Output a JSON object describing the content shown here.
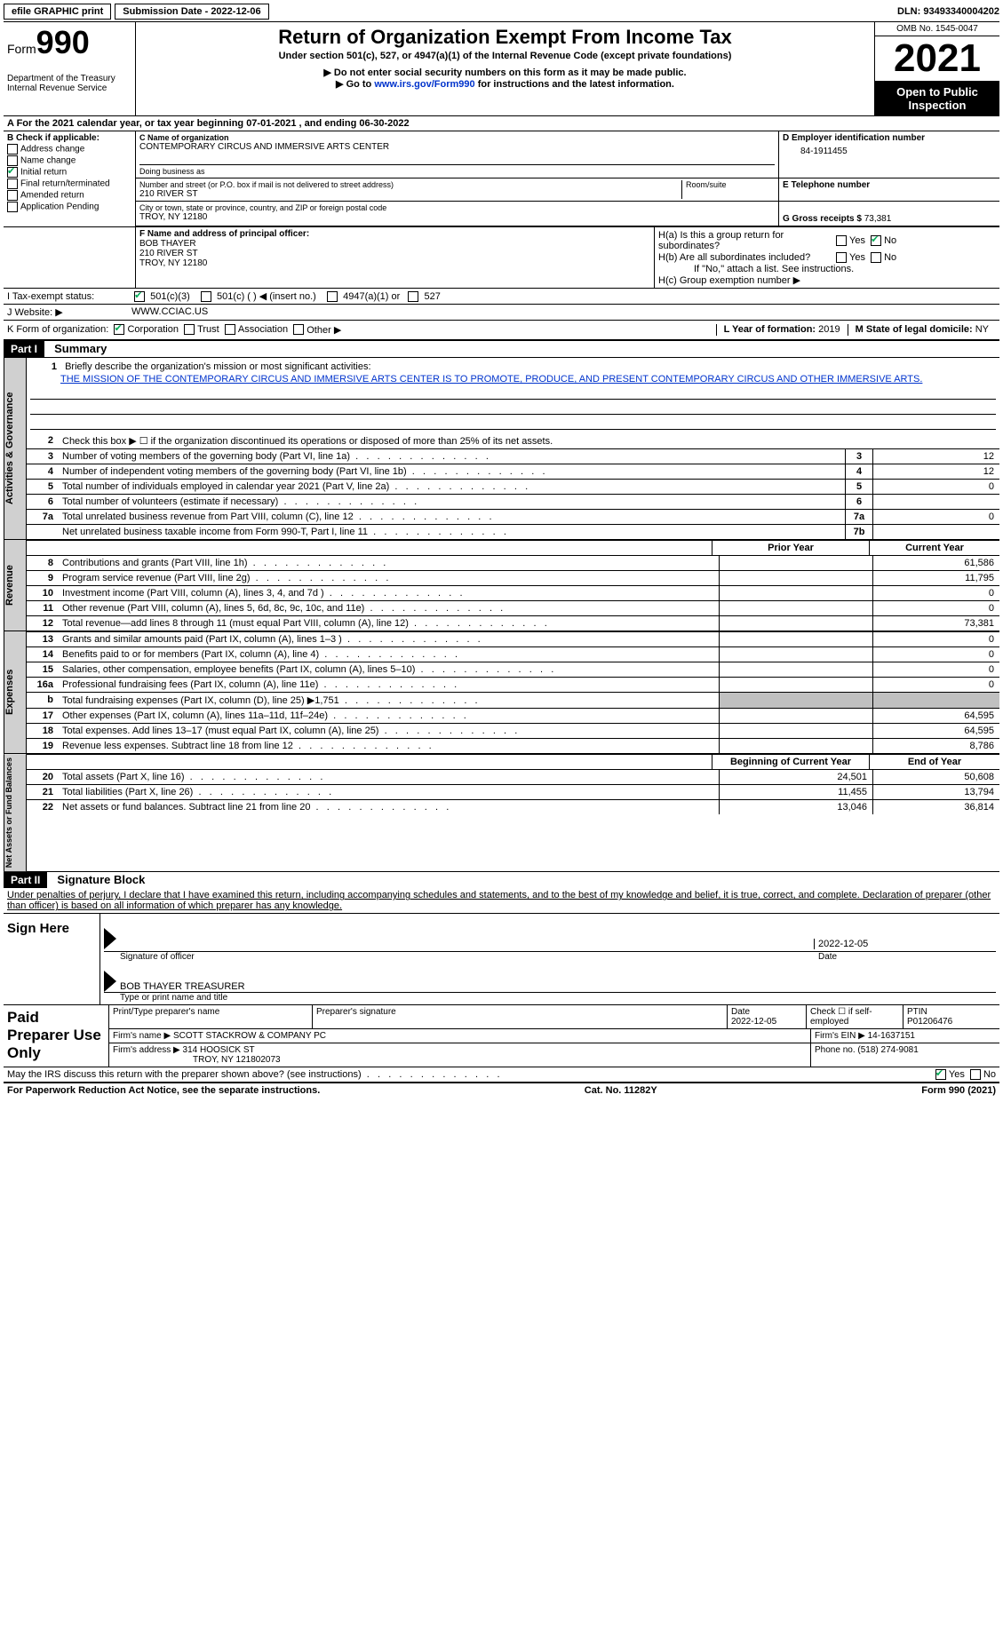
{
  "topbar": {
    "efile": "efile GRAPHIC print",
    "submission_label": "Submission Date - 2022-12-06",
    "dln_label": "DLN: 93493340004202"
  },
  "header": {
    "form_label": "Form",
    "form_number": "990",
    "dept": "Department of the Treasury",
    "irs": "Internal Revenue Service",
    "title": "Return of Organization Exempt From Income Tax",
    "subtitle": "Under section 501(c), 527, or 4947(a)(1) of the Internal Revenue Code (except private foundations)",
    "note1": "▶ Do not enter social security numbers on this form as it may be made public.",
    "note2_a": "▶ Go to ",
    "note2_link": "www.irs.gov/Form990",
    "note2_b": " for instructions and the latest information.",
    "omb": "OMB No. 1545-0047",
    "year": "2021",
    "open": "Open to Public Inspection"
  },
  "row_a": "A For the 2021 calendar year, or tax year beginning 07-01-2021    , and ending 06-30-2022",
  "col_b": {
    "header": "B Check if applicable:",
    "items": [
      {
        "label": "Address change",
        "checked": false
      },
      {
        "label": "Name change",
        "checked": false
      },
      {
        "label": "Initial return",
        "checked": true
      },
      {
        "label": "Final return/terminated",
        "checked": false
      },
      {
        "label": "Amended return",
        "checked": false
      },
      {
        "label": "Application Pending",
        "checked": false
      }
    ]
  },
  "col_c": {
    "name_label": "C Name of organization",
    "name": "CONTEMPORARY CIRCUS AND IMMERSIVE ARTS CENTER",
    "dba_label": "Doing business as",
    "addr_label": "Number and street (or P.O. box if mail is not delivered to street address)",
    "room_label": "Room/suite",
    "street": "210 RIVER ST",
    "city_label": "City or town, state or province, country, and ZIP or foreign postal code",
    "city": "TROY, NY  12180"
  },
  "col_d": {
    "label": "D Employer identification number",
    "value": "84-1911455"
  },
  "col_e": {
    "label": "E Telephone number",
    "value": ""
  },
  "col_g": {
    "label": "G Gross receipts $",
    "value": "73,381"
  },
  "col_f": {
    "label": "F  Name and address of principal officer:",
    "name": "BOB THAYER",
    "street": "210 RIVER ST",
    "city": "TROY, NY  12180"
  },
  "col_h": {
    "ha": "H(a)  Is this a group return for subordinates?",
    "hb": "H(b)  Are all subordinates included?",
    "hb_note": "If \"No,\" attach a list. See instructions.",
    "hc": "H(c)  Group exemption number ▶",
    "ha_no_checked": true
  },
  "tax_status": {
    "label": "I  Tax-exempt status:",
    "opt1": "501(c)(3)",
    "opt2": "501(c) (  ) ◀ (insert no.)",
    "opt3": "4947(a)(1) or",
    "opt4": "527",
    "checked_501c3": true
  },
  "website": {
    "label": "J  Website: ▶",
    "value": "WWW.CCIAC.US"
  },
  "k_org": {
    "label": "K Form of organization:",
    "corp": "Corporation",
    "trust": "Trust",
    "assoc": "Association",
    "other": "Other ▶",
    "l_label": "L Year of formation: ",
    "l_value": "2019",
    "m_label": "M State of legal domicile: ",
    "m_value": "NY"
  },
  "part1": {
    "header": "Part I",
    "title": "Summary",
    "line1_label": "Briefly describe the organization's mission or most significant activities:",
    "mission": "THE MISSION OF THE CONTEMPORARY CIRCUS AND IMMERSIVE ARTS CENTER IS TO PROMOTE, PRODUCE, AND PRESENT CONTEMPORARY CIRCUS AND OTHER IMMERSIVE ARTS.",
    "line2": "Check this box ▶ ☐  if the organization discontinued its operations or disposed of more than 25% of its net assets.",
    "gov_lines": [
      {
        "num": "3",
        "desc": "Number of voting members of the governing body (Part VI, line 1a)",
        "box": "3",
        "val": "12"
      },
      {
        "num": "4",
        "desc": "Number of independent voting members of the governing body (Part VI, line 1b)",
        "box": "4",
        "val": "12"
      },
      {
        "num": "5",
        "desc": "Total number of individuals employed in calendar year 2021 (Part V, line 2a)",
        "box": "5",
        "val": "0"
      },
      {
        "num": "6",
        "desc": "Total number of volunteers (estimate if necessary)",
        "box": "6",
        "val": ""
      },
      {
        "num": "7a",
        "desc": "Total unrelated business revenue from Part VIII, column (C), line 12",
        "box": "7a",
        "val": "0"
      },
      {
        "num": "",
        "desc": "Net unrelated business taxable income from Form 990-T, Part I, line 11",
        "box": "7b",
        "val": ""
      }
    ],
    "col_prior": "Prior Year",
    "col_current": "Current Year",
    "rev_lines": [
      {
        "num": "8",
        "desc": "Contributions and grants (Part VIII, line 1h)",
        "prior": "",
        "current": "61,586"
      },
      {
        "num": "9",
        "desc": "Program service revenue (Part VIII, line 2g)",
        "prior": "",
        "current": "11,795"
      },
      {
        "num": "10",
        "desc": "Investment income (Part VIII, column (A), lines 3, 4, and 7d )",
        "prior": "",
        "current": "0"
      },
      {
        "num": "11",
        "desc": "Other revenue (Part VIII, column (A), lines 5, 6d, 8c, 9c, 10c, and 11e)",
        "prior": "",
        "current": "0"
      },
      {
        "num": "12",
        "desc": "Total revenue—add lines 8 through 11 (must equal Part VIII, column (A), line 12)",
        "prior": "",
        "current": "73,381"
      }
    ],
    "exp_lines": [
      {
        "num": "13",
        "desc": "Grants and similar amounts paid (Part IX, column (A), lines 1–3 )",
        "prior": "",
        "current": "0"
      },
      {
        "num": "14",
        "desc": "Benefits paid to or for members (Part IX, column (A), line 4)",
        "prior": "",
        "current": "0"
      },
      {
        "num": "15",
        "desc": "Salaries, other compensation, employee benefits (Part IX, column (A), lines 5–10)",
        "prior": "",
        "current": "0"
      },
      {
        "num": "16a",
        "desc": "Professional fundraising fees (Part IX, column (A), line 11e)",
        "prior": "",
        "current": "0"
      },
      {
        "num": "b",
        "desc": "Total fundraising expenses (Part IX, column (D), line 25) ▶1,751",
        "prior": "grey",
        "current": "grey"
      },
      {
        "num": "17",
        "desc": "Other expenses (Part IX, column (A), lines 11a–11d, 11f–24e)",
        "prior": "",
        "current": "64,595"
      },
      {
        "num": "18",
        "desc": "Total expenses. Add lines 13–17 (must equal Part IX, column (A), line 25)",
        "prior": "",
        "current": "64,595"
      },
      {
        "num": "19",
        "desc": "Revenue less expenses. Subtract line 18 from line 12",
        "prior": "",
        "current": "8,786"
      }
    ],
    "col_begin": "Beginning of Current Year",
    "col_end": "End of Year",
    "net_lines": [
      {
        "num": "20",
        "desc": "Total assets (Part X, line 16)",
        "prior": "24,501",
        "current": "50,608"
      },
      {
        "num": "21",
        "desc": "Total liabilities (Part X, line 26)",
        "prior": "11,455",
        "current": "13,794"
      },
      {
        "num": "22",
        "desc": "Net assets or fund balances. Subtract line 21 from line 20",
        "prior": "13,046",
        "current": "36,814"
      }
    ]
  },
  "part2": {
    "header": "Part II",
    "title": "Signature Block",
    "penalty": "Under penalties of perjury, I declare that I have examined this return, including accompanying schedules and statements, and to the best of my knowledge and belief, it is true, correct, and complete. Declaration of preparer (other than officer) is based on all information of which preparer has any knowledge.",
    "sign_here": "Sign Here",
    "sig_date": "2022-12-05",
    "sig_officer_label": "Signature of officer",
    "date_label": "Date",
    "officer_name": "BOB THAYER TREASURER",
    "type_label": "Type or print name and title",
    "paid_label": "Paid Preparer Use Only",
    "print_label": "Print/Type preparer's name",
    "prep_sig_label": "Preparer's signature",
    "prep_date_label": "Date",
    "prep_date": "2022-12-05",
    "check_self": "Check ☐ if self-employed",
    "ptin_label": "PTIN",
    "ptin": "P01206476",
    "firm_name_label": "Firm's name    ▶",
    "firm_name": "SCOTT STACKROW & COMPANY PC",
    "firm_ein_label": "Firm's EIN ▶",
    "firm_ein": "14-1637151",
    "firm_addr_label": "Firm's address ▶",
    "firm_addr1": "314 HOOSICK ST",
    "firm_addr2": "TROY, NY  121802073",
    "phone_label": "Phone no.",
    "phone": "(518) 274-9081",
    "discuss": "May the IRS discuss this return with the preparer shown above? (see instructions)",
    "discuss_yes_checked": true
  },
  "footer": {
    "left": "For Paperwork Reduction Act Notice, see the separate instructions.",
    "mid": "Cat. No. 11282Y",
    "right": "Form 990 (2021)"
  },
  "vtabs": {
    "gov": "Activities & Governance",
    "rev": "Revenue",
    "exp": "Expenses",
    "net": "Net Assets or Fund Balances"
  }
}
